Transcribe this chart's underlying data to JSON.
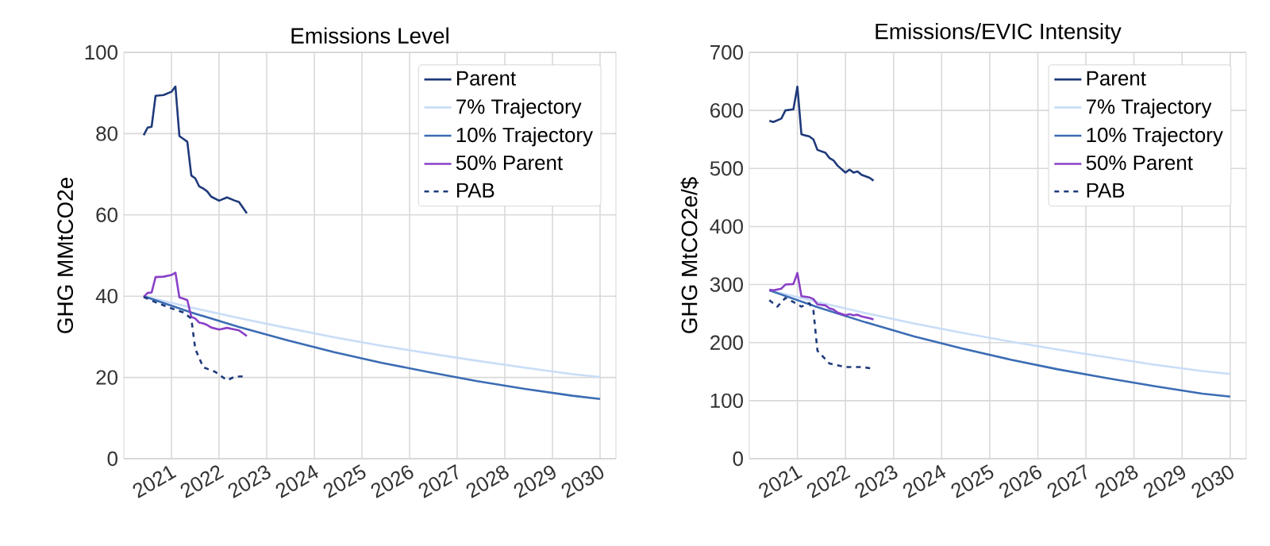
{
  "chart_data": [
    {
      "type": "line",
      "title": "Emissions Level",
      "ylabel": "GHG MMtCO2e",
      "xlim": [
        "2020-01",
        "2030-05"
      ],
      "ylim": [
        0,
        100
      ],
      "yticks": [
        0,
        20,
        40,
        60,
        80,
        100
      ],
      "grid": true,
      "legend": "top right",
      "xticks": [
        {
          "value": "2021",
          "label": "2021"
        },
        {
          "value": "2022",
          "label": "2022"
        },
        {
          "value": "2023",
          "label": "2023"
        },
        {
          "value": "2024",
          "label": "2024"
        },
        {
          "value": "2025",
          "label": "2025"
        },
        {
          "value": "2026",
          "label": "2026"
        },
        {
          "value": "2027",
          "label": "2027"
        },
        {
          "value": "2028",
          "label": "2028"
        },
        {
          "value": "2029",
          "label": "2029"
        },
        {
          "value": "2030",
          "label": "2030"
        }
      ],
      "series": [
        {
          "name": "Parent",
          "color": "#1f3a7a",
          "x": [
            "2020-06",
            "2020-07",
            "2020-08",
            "2020-09",
            "2020-11",
            "2021-01",
            "2021-02",
            "2021-03",
            "2021-04",
            "2021-05",
            "2021-06",
            "2021-07",
            "2021-08",
            "2021-09",
            "2021-10",
            "2021-11",
            "2022-01",
            "2022-03",
            "2022-05",
            "2022-06",
            "2022-08"
          ],
          "values": [
            79.6,
            81.5,
            81.7,
            89.3,
            89.5,
            90.3,
            91.6,
            79.4,
            78.7,
            78,
            69.7,
            69,
            67,
            66.5,
            65.8,
            64.5,
            63.5,
            64.3,
            63.5,
            63.2,
            60.4
          ]
        },
        {
          "name": "7% Trajectory",
          "color": "#c9ddf7",
          "x": [
            "2020-06",
            "2021-06",
            "2022-06",
            "2023-06",
            "2024-06",
            "2025-06",
            "2026-06",
            "2027-06",
            "2028-06",
            "2029-06",
            "2030-01"
          ],
          "values": [
            40,
            37.2,
            34.6,
            32.2,
            29.9,
            27.8,
            25.9,
            24.1,
            22.4,
            20.8,
            20.1
          ]
        },
        {
          "name": "10% Trajectory",
          "color": "#3b6cb4",
          "x": [
            "2020-06",
            "2021-06",
            "2022-06",
            "2023-06",
            "2024-06",
            "2025-06",
            "2026-06",
            "2027-06",
            "2028-06",
            "2029-06",
            "2030-01"
          ],
          "values": [
            40,
            36,
            32.4,
            29.2,
            26.2,
            23.6,
            21.3,
            19.1,
            17.2,
            15.5,
            14.7
          ]
        },
        {
          "name": "50% Parent",
          "color": "#8a40c8",
          "x": [
            "2020-06",
            "2020-07",
            "2020-08",
            "2020-09",
            "2020-11",
            "2021-01",
            "2021-02",
            "2021-03",
            "2021-04",
            "2021-05",
            "2021-06",
            "2021-07",
            "2021-08",
            "2021-09",
            "2021-10",
            "2021-11",
            "2022-01",
            "2022-03",
            "2022-05",
            "2022-06",
            "2022-08"
          ],
          "values": [
            39.8,
            40.8,
            40.9,
            44.7,
            44.8,
            45.2,
            45.8,
            39.7,
            39.4,
            39,
            34.9,
            34.5,
            33.5,
            33.3,
            32.9,
            32.3,
            31.8,
            32.2,
            31.8,
            31.6,
            30.2
          ]
        },
        {
          "name": "PAB",
          "color": "#1f3a7a",
          "line_style": "dashed",
          "x": [
            "2020-06",
            "2020-09",
            "2021-01",
            "2021-04",
            "2021-06",
            "2021-07",
            "2021-09",
            "2021-12",
            "2022-03",
            "2022-05",
            "2022-08"
          ],
          "values": [
            39.8,
            38.5,
            37,
            36,
            34.5,
            27,
            22.5,
            21.4,
            19.3,
            20.2,
            20.3
          ]
        }
      ]
    },
    {
      "type": "line",
      "title": "Emissions/EVIC Intensity",
      "ylabel": "GHG MtCO2e/$",
      "xlim": [
        "2020-01",
        "2030-05"
      ],
      "ylim": [
        0,
        700
      ],
      "yticks": [
        0,
        100,
        200,
        300,
        400,
        500,
        600,
        700
      ],
      "grid": true,
      "legend": "top right",
      "xticks": [
        {
          "value": "2021",
          "label": "2021"
        },
        {
          "value": "2022",
          "label": "2022"
        },
        {
          "value": "2023",
          "label": "2023"
        },
        {
          "value": "2024",
          "label": "2024"
        },
        {
          "value": "2025",
          "label": "2025"
        },
        {
          "value": "2026",
          "label": "2026"
        },
        {
          "value": "2027",
          "label": "2027"
        },
        {
          "value": "2028",
          "label": "2028"
        },
        {
          "value": "2029",
          "label": "2029"
        },
        {
          "value": "2030",
          "label": "2030"
        }
      ],
      "series": [
        {
          "name": "Parent",
          "color": "#1f3a7a",
          "x": [
            "2020-06",
            "2020-07",
            "2020-09",
            "2020-10",
            "2020-12",
            "2021-01",
            "2021-02",
            "2021-04",
            "2021-05",
            "2021-06",
            "2021-08",
            "2021-09",
            "2021-10",
            "2021-11",
            "2022-01",
            "2022-02",
            "2022-03",
            "2022-04",
            "2022-05",
            "2022-07",
            "2022-08"
          ],
          "values": [
            582,
            580,
            586,
            600,
            602,
            641,
            559,
            555,
            550,
            532,
            527,
            518,
            514,
            505,
            493,
            498,
            493,
            495,
            489,
            484,
            479
          ]
        },
        {
          "name": "7% Trajectory",
          "color": "#c9ddf7",
          "x": [
            "2020-06",
            "2021-06",
            "2022-06",
            "2023-06",
            "2024-06",
            "2025-06",
            "2026-06",
            "2027-06",
            "2028-06",
            "2029-06",
            "2030-01"
          ],
          "values": [
            290,
            270,
            251,
            233,
            217,
            202,
            188,
            175,
            162,
            151,
            146
          ]
        },
        {
          "name": "10% Trajectory",
          "color": "#3b6cb4",
          "x": [
            "2020-06",
            "2021-06",
            "2022-06",
            "2023-06",
            "2024-06",
            "2025-06",
            "2026-06",
            "2027-06",
            "2028-06",
            "2029-06",
            "2030-01"
          ],
          "values": [
            290,
            261,
            235,
            211,
            190,
            171,
            154,
            139,
            125,
            112,
            107
          ]
        },
        {
          "name": "50% Parent",
          "color": "#8a40c8",
          "x": [
            "2020-06",
            "2020-07",
            "2020-09",
            "2020-10",
            "2020-12",
            "2021-01",
            "2021-02",
            "2021-04",
            "2021-05",
            "2021-06",
            "2021-08",
            "2021-09",
            "2021-10",
            "2021-11",
            "2022-01",
            "2022-02",
            "2022-03",
            "2022-04",
            "2022-05",
            "2022-07",
            "2022-08"
          ],
          "values": [
            291,
            290,
            293,
            300,
            301,
            320,
            280,
            278,
            275,
            266,
            264,
            259,
            257,
            252,
            247,
            249,
            247,
            248,
            245,
            242,
            240
          ]
        },
        {
          "name": "PAB",
          "color": "#1f3a7a",
          "line_style": "dashed",
          "x": [
            "2020-06",
            "2020-08",
            "2020-10",
            "2020-12",
            "2021-02",
            "2021-04",
            "2021-05",
            "2021-06",
            "2021-09",
            "2022-01",
            "2022-05",
            "2022-08"
          ],
          "values": [
            273,
            262,
            277,
            270,
            262,
            268,
            255,
            186,
            164,
            158,
            158,
            155
          ]
        }
      ]
    }
  ]
}
